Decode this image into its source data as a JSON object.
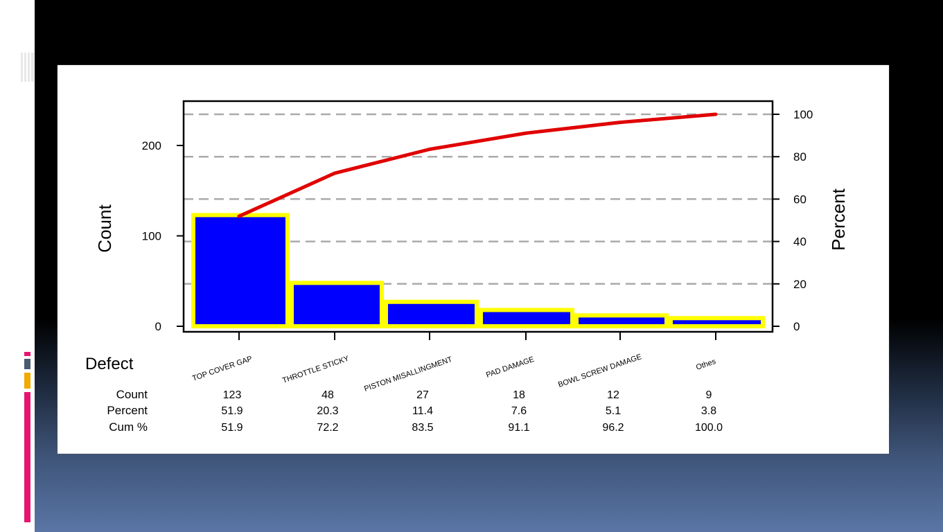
{
  "slide": {
    "accent_colors": [
      "#e6156f",
      "#4a5a70",
      "#f2a900",
      "#e6156f"
    ]
  },
  "chart_data": {
    "type": "pareto",
    "xlabel": "Defect",
    "ylabel_left": "Count",
    "ylabel_right": "Percent",
    "ylim_left": [
      0,
      237
    ],
    "yticks_left": [
      0,
      100,
      200
    ],
    "ylim_right": [
      0,
      100
    ],
    "yticks_right": [
      0,
      20,
      40,
      60,
      80,
      100
    ],
    "grid": "dashed horizontal",
    "bar_color": "#0000ff",
    "bar_outline": "#ffff00",
    "line_color": "#e00000",
    "categories": [
      "TOP COVER GAP",
      "THROTTLE STICKY",
      "PISTON MISALLINGMENT",
      "PAD DAMAGE",
      "BOWL SCREW DAMAGE",
      "Othes"
    ],
    "counts": [
      123,
      48,
      27,
      18,
      12,
      9
    ],
    "percent": [
      51.9,
      20.3,
      11.4,
      7.6,
      5.1,
      3.8
    ],
    "cum_percent": [
      51.9,
      72.2,
      83.5,
      91.1,
      96.2,
      100.0
    ],
    "table": {
      "row_labels": [
        "Count",
        "Percent",
        "Cum %"
      ],
      "rows": [
        [
          "123",
          "48",
          "27",
          "18",
          "12",
          "9"
        ],
        [
          "51.9",
          "20.3",
          "11.4",
          "7.6",
          "5.1",
          "3.8"
        ],
        [
          "51.9",
          "72.2",
          "83.5",
          "91.1",
          "96.2",
          "100.0"
        ]
      ]
    }
  }
}
